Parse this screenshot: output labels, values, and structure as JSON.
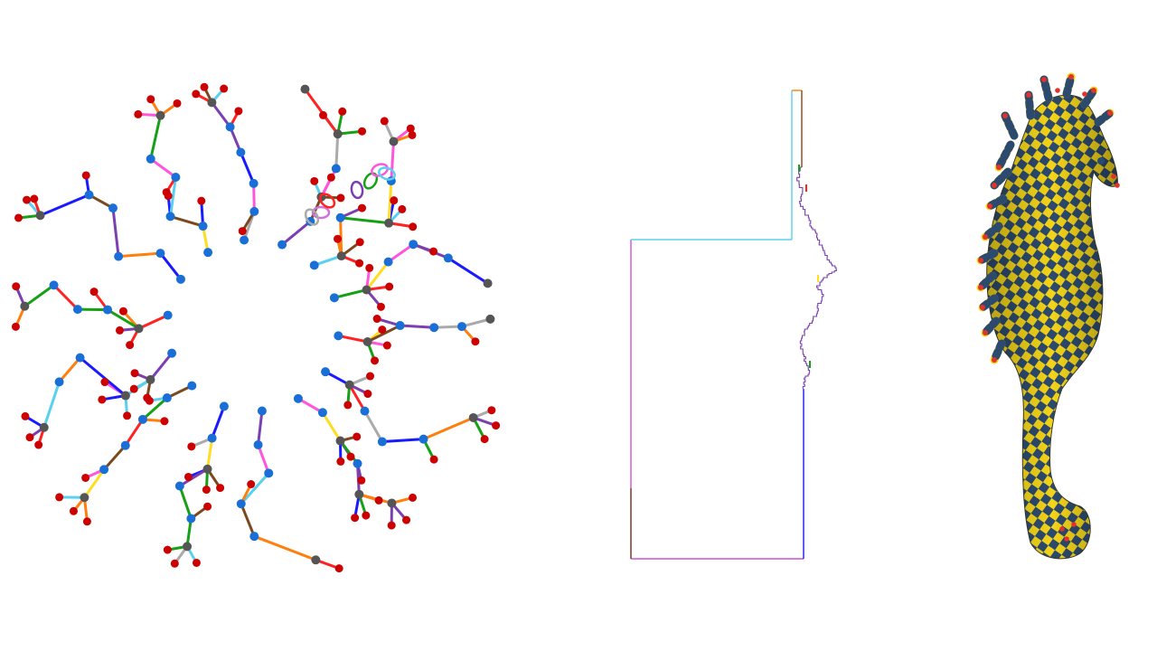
{
  "figure": {
    "panels": [
      {
        "id": "graph",
        "kind": "radial-tree-graph"
      },
      {
        "id": "polygon",
        "kind": "orthogonal-boundary-outline"
      },
      {
        "id": "seahorse",
        "kind": "checkerboard-textured-mesh"
      }
    ],
    "colors": {
      "leaf_node": "#cc0000",
      "inner_node": "#1a6fd6",
      "hub_node": "#555555",
      "edge_palette": [
        "#1a1aff",
        "#ff2222",
        "#16a016",
        "#ff7f0e",
        "#7b3fb0",
        "#7a4a1e",
        "#5ad0f0",
        "#ff55dd",
        "#ffdd22",
        "#aaaaaa"
      ],
      "checker_a": "#f3d419",
      "checker_b": "#2c4a6e",
      "seam_point": "#e0332b"
    }
  }
}
